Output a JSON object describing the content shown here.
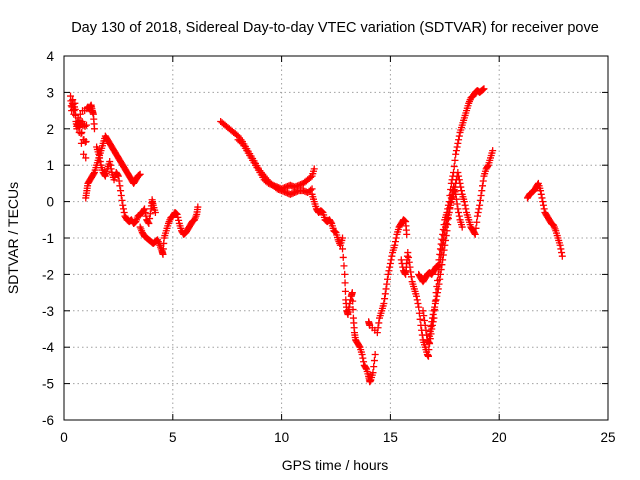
{
  "chart_data": {
    "type": "scatter",
    "title": "Day 130 of 2018, Sidereal Day-to-day VTEC variation (SDTVAR) for receiver pove",
    "xlabel": "GPS time / hours",
    "ylabel": "SDTVAR / TECUs",
    "xlim": [
      0,
      25
    ],
    "ylim": [
      -6,
      4
    ],
    "xticks": [
      "0",
      "5",
      "10",
      "15",
      "20",
      "25"
    ],
    "yticks": [
      "-6",
      "-5",
      "-4",
      "-3",
      "-2",
      "-1",
      "0",
      "1",
      "2",
      "3",
      "4"
    ],
    "grid": true,
    "marker": "+",
    "series_color": "#ff0000",
    "series": [
      {
        "points": [
          [
            0.3,
            2.9
          ],
          [
            0.35,
            2.5
          ],
          [
            0.4,
            2.8
          ],
          [
            0.45,
            2.4
          ],
          [
            0.5,
            2.7
          ],
          [
            0.55,
            2.2
          ],
          [
            0.6,
            2.0
          ],
          [
            0.65,
            2.3
          ],
          [
            0.7,
            1.9
          ],
          [
            0.75,
            2.4
          ],
          [
            0.8,
            1.6
          ],
          [
            0.85,
            2.5
          ],
          [
            0.9,
            1.3
          ],
          [
            0.95,
            2.5
          ],
          [
            1.0,
            1.2
          ],
          [
            1.05,
            2.55
          ],
          [
            1.1,
            2.6
          ],
          [
            1.15,
            2.55
          ],
          [
            1.2,
            2.6
          ],
          [
            1.25,
            2.65
          ],
          [
            1.3,
            2.5
          ],
          [
            1.35,
            2.4
          ],
          [
            1.4,
            2.0
          ]
        ]
      },
      {
        "points": [
          [
            1.0,
            0.1
          ],
          [
            1.05,
            0.3
          ],
          [
            1.1,
            0.5
          ],
          [
            1.2,
            0.6
          ],
          [
            1.3,
            0.7
          ],
          [
            1.4,
            0.8
          ],
          [
            1.5,
            1.0
          ],
          [
            1.6,
            1.2
          ],
          [
            1.7,
            1.4
          ],
          [
            1.8,
            1.6
          ],
          [
            1.9,
            1.8
          ],
          [
            2.0,
            1.7
          ],
          [
            2.1,
            1.6
          ],
          [
            2.2,
            1.5
          ],
          [
            2.3,
            1.4
          ],
          [
            2.4,
            1.3
          ],
          [
            2.5,
            1.2
          ],
          [
            2.6,
            1.1
          ],
          [
            2.7,
            1.0
          ],
          [
            2.8,
            0.9
          ],
          [
            2.9,
            0.8
          ],
          [
            3.0,
            0.7
          ],
          [
            3.1,
            0.6
          ],
          [
            3.2,
            0.5
          ],
          [
            3.3,
            0.6
          ],
          [
            3.4,
            0.7
          ],
          [
            3.5,
            0.75
          ]
        ]
      },
      {
        "points": [
          [
            1.5,
            1.5
          ],
          [
            1.6,
            1.3
          ],
          [
            1.7,
            1.0
          ],
          [
            1.8,
            0.8
          ],
          [
            1.9,
            0.7
          ],
          [
            2.0,
            0.9
          ],
          [
            2.1,
            1.1
          ],
          [
            2.2,
            0.8
          ],
          [
            2.3,
            0.6
          ],
          [
            2.4,
            0.8
          ],
          [
            2.5,
            0.7
          ],
          [
            2.6,
            0.3
          ],
          [
            2.7,
            -0.1
          ],
          [
            2.8,
            -0.4
          ],
          [
            2.9,
            -0.5
          ],
          [
            3.0,
            -0.55
          ],
          [
            3.1,
            -0.5
          ],
          [
            3.2,
            -0.6
          ],
          [
            3.3,
            -0.55
          ],
          [
            3.4,
            -0.4
          ],
          [
            3.5,
            -0.35
          ],
          [
            3.6,
            -0.3
          ],
          [
            3.7,
            -0.2
          ],
          [
            3.8,
            -0.5
          ],
          [
            3.9,
            -0.6
          ],
          [
            4.0,
            -0.2
          ],
          [
            4.05,
            0.05
          ],
          [
            4.1,
            -0.1
          ],
          [
            4.2,
            -0.3
          ]
        ]
      },
      {
        "points": [
          [
            3.5,
            -0.7
          ],
          [
            3.6,
            -0.85
          ],
          [
            3.7,
            -0.95
          ],
          [
            3.8,
            -1.0
          ],
          [
            3.9,
            -1.05
          ],
          [
            4.0,
            -1.1
          ],
          [
            4.1,
            -1.15
          ],
          [
            4.2,
            -1.1
          ],
          [
            4.3,
            -1.05
          ],
          [
            4.4,
            -1.2
          ],
          [
            4.5,
            -1.35
          ],
          [
            4.55,
            -1.45
          ],
          [
            4.6,
            -1.0
          ],
          [
            4.7,
            -0.8
          ],
          [
            4.8,
            -0.6
          ],
          [
            4.9,
            -0.45
          ],
          [
            5.0,
            -0.4
          ],
          [
            5.1,
            -0.3
          ],
          [
            5.2,
            -0.35
          ],
          [
            5.3,
            -0.6
          ],
          [
            5.4,
            -0.8
          ],
          [
            5.5,
            -0.9
          ],
          [
            5.6,
            -0.85
          ],
          [
            5.7,
            -0.75
          ],
          [
            5.8,
            -0.65
          ],
          [
            5.9,
            -0.55
          ],
          [
            6.0,
            -0.5
          ],
          [
            6.1,
            -0.35
          ],
          [
            6.15,
            -0.15
          ]
        ]
      },
      {
        "points": [
          [
            7.2,
            2.2
          ],
          [
            7.4,
            2.1
          ],
          [
            7.6,
            2.0
          ],
          [
            7.8,
            1.9
          ],
          [
            8.0,
            1.8
          ],
          [
            8.2,
            1.65
          ],
          [
            8.4,
            1.45
          ],
          [
            8.6,
            1.25
          ],
          [
            8.8,
            1.05
          ],
          [
            9.0,
            0.85
          ],
          [
            9.2,
            0.7
          ],
          [
            9.4,
            0.55
          ],
          [
            9.6,
            0.45
          ],
          [
            9.8,
            0.35
          ],
          [
            10.0,
            0.3
          ],
          [
            10.2,
            0.25
          ],
          [
            10.4,
            0.2
          ],
          [
            10.6,
            0.25
          ],
          [
            10.8,
            0.3
          ],
          [
            11.0,
            0.3
          ],
          [
            11.2,
            0.25
          ],
          [
            11.4,
            0.35
          ]
        ]
      },
      {
        "points": [
          [
            8.0,
            1.7
          ],
          [
            8.2,
            1.6
          ],
          [
            8.4,
            1.4
          ],
          [
            8.6,
            1.2
          ],
          [
            8.8,
            1.0
          ],
          [
            9.0,
            0.8
          ],
          [
            9.2,
            0.6
          ],
          [
            9.4,
            0.5
          ],
          [
            9.6,
            0.45
          ],
          [
            9.8,
            0.4
          ],
          [
            10.0,
            0.35
          ],
          [
            10.2,
            0.4
          ],
          [
            10.4,
            0.45
          ],
          [
            10.6,
            0.4
          ],
          [
            10.8,
            0.45
          ],
          [
            11.0,
            0.5
          ],
          [
            11.2,
            0.6
          ],
          [
            11.4,
            0.7
          ],
          [
            11.5,
            0.9
          ]
        ]
      },
      {
        "points": [
          [
            11.4,
            0.2
          ],
          [
            11.5,
            0.0
          ],
          [
            11.6,
            -0.2
          ],
          [
            11.7,
            -0.3
          ],
          [
            11.8,
            -0.25
          ],
          [
            11.9,
            -0.3
          ],
          [
            12.0,
            -0.5
          ],
          [
            12.1,
            -0.55
          ],
          [
            12.2,
            -0.5
          ],
          [
            12.3,
            -0.6
          ],
          [
            12.4,
            -0.8
          ],
          [
            12.5,
            -0.85
          ],
          [
            12.6,
            -1.05
          ],
          [
            12.7,
            -1.2
          ],
          [
            12.8,
            -1.0
          ]
        ]
      },
      {
        "points": [
          [
            12.8,
            -1.3
          ],
          [
            12.9,
            -2.0
          ],
          [
            12.95,
            -2.7
          ],
          [
            13.0,
            -3.0
          ],
          [
            13.05,
            -3.1
          ],
          [
            13.1,
            -2.9
          ],
          [
            13.2,
            -2.6
          ],
          [
            13.25,
            -2.5
          ],
          [
            13.3,
            -3.2
          ],
          [
            13.35,
            -3.6
          ],
          [
            13.4,
            -3.8
          ],
          [
            13.5,
            -3.9
          ],
          [
            13.6,
            -4.0
          ],
          [
            13.7,
            -4.2
          ],
          [
            13.8,
            -4.5
          ],
          [
            13.9,
            -4.6
          ],
          [
            14.0,
            -4.8
          ],
          [
            14.05,
            -4.95
          ],
          [
            14.1,
            -4.9
          ],
          [
            14.2,
            -4.7
          ],
          [
            14.3,
            -4.2
          ]
        ]
      },
      {
        "points": [
          [
            14.0,
            -3.3
          ],
          [
            14.05,
            -3.4
          ],
          [
            14.4,
            -3.6
          ],
          [
            14.5,
            -3.2
          ],
          [
            14.6,
            -3.0
          ],
          [
            14.7,
            -2.8
          ],
          [
            14.8,
            -2.4
          ],
          [
            14.9,
            -2.0
          ],
          [
            15.0,
            -1.7
          ],
          [
            15.1,
            -1.4
          ],
          [
            15.2,
            -1.2
          ],
          [
            15.3,
            -0.9
          ],
          [
            15.4,
            -0.7
          ],
          [
            15.5,
            -0.6
          ],
          [
            15.6,
            -0.5
          ],
          [
            15.7,
            -0.55
          ],
          [
            15.75,
            -0.9
          ]
        ]
      },
      {
        "points": [
          [
            15.5,
            -1.6
          ],
          [
            15.6,
            -1.9
          ],
          [
            15.7,
            -2.0
          ],
          [
            15.75,
            -1.7
          ],
          [
            15.8,
            -1.4
          ],
          [
            15.9,
            -1.8
          ],
          [
            16.0,
            -2.2
          ],
          [
            16.1,
            -2.4
          ],
          [
            16.2,
            -2.6
          ],
          [
            16.3,
            -2.9
          ],
          [
            16.4,
            -3.4
          ],
          [
            16.5,
            -3.8
          ],
          [
            16.6,
            -4.0
          ],
          [
            16.7,
            -4.2
          ],
          [
            16.75,
            -4.25
          ],
          [
            16.8,
            -3.7
          ],
          [
            16.9,
            -3.3
          ],
          [
            17.0,
            -3.0
          ],
          [
            17.1,
            -2.7
          ],
          [
            17.2,
            -2.4
          ],
          [
            17.3,
            -2.0
          ],
          [
            17.4,
            -1.6
          ],
          [
            17.5,
            -1.2
          ],
          [
            17.6,
            -0.8
          ],
          [
            17.7,
            -0.3
          ],
          [
            17.8,
            0.1
          ],
          [
            17.9,
            0.4
          ],
          [
            18.0,
            0.2
          ],
          [
            18.1,
            -0.2
          ],
          [
            18.2,
            -0.5
          ],
          [
            18.3,
            -0.7
          ]
        ]
      },
      {
        "points": [
          [
            16.3,
            -2.0
          ],
          [
            16.4,
            -2.1
          ],
          [
            16.5,
            -2.2
          ],
          [
            16.6,
            -2.1
          ],
          [
            16.7,
            -2.0
          ],
          [
            16.8,
            -1.95
          ],
          [
            16.9,
            -2.0
          ],
          [
            17.0,
            -1.9
          ],
          [
            17.1,
            -1.8
          ],
          [
            17.2,
            -1.75
          ],
          [
            17.3,
            -1.3
          ],
          [
            17.4,
            -0.9
          ],
          [
            17.5,
            -0.5
          ],
          [
            17.6,
            -0.3
          ],
          [
            17.7,
            0.0
          ],
          [
            17.8,
            0.5
          ],
          [
            17.9,
            0.8
          ],
          [
            18.0,
            1.3
          ],
          [
            18.1,
            1.6
          ],
          [
            18.2,
            1.9
          ],
          [
            18.3,
            2.1
          ],
          [
            18.4,
            2.3
          ],
          [
            18.5,
            2.5
          ],
          [
            18.6,
            2.7
          ],
          [
            18.7,
            2.85
          ],
          [
            18.8,
            2.9
          ],
          [
            18.9,
            3.0
          ],
          [
            19.0,
            3.05
          ],
          [
            19.1,
            3.0
          ],
          [
            19.2,
            3.05
          ],
          [
            19.3,
            3.1
          ]
        ]
      },
      {
        "points": [
          [
            16.5,
            -3.0
          ],
          [
            16.6,
            -3.4
          ],
          [
            16.7,
            -3.8
          ],
          [
            16.8,
            -3.9
          ],
          [
            16.9,
            -3.5
          ],
          [
            17.0,
            -3.2
          ],
          [
            17.1,
            -2.5
          ],
          [
            17.2,
            -2.0
          ],
          [
            17.3,
            -1.6
          ],
          [
            17.4,
            -1.2
          ],
          [
            17.5,
            -0.8
          ],
          [
            17.6,
            -0.5
          ],
          [
            17.7,
            -0.3
          ],
          [
            17.8,
            0.0
          ],
          [
            17.9,
            0.2
          ],
          [
            18.0,
            0.5
          ],
          [
            18.1,
            0.8
          ],
          [
            18.2,
            0.5
          ],
          [
            18.3,
            0.2
          ],
          [
            18.4,
            0.0
          ],
          [
            18.5,
            -0.3
          ],
          [
            18.6,
            -0.5
          ],
          [
            18.7,
            -0.7
          ],
          [
            18.8,
            -0.8
          ],
          [
            18.9,
            -0.9
          ],
          [
            19.0,
            -0.4
          ],
          [
            19.1,
            -0.1
          ],
          [
            19.2,
            0.3
          ],
          [
            19.3,
            0.7
          ],
          [
            19.4,
            0.9
          ],
          [
            19.5,
            1.0
          ],
          [
            19.6,
            1.2
          ],
          [
            19.7,
            1.4
          ]
        ]
      },
      {
        "points": [
          [
            21.3,
            0.1
          ],
          [
            21.4,
            0.2
          ],
          [
            21.5,
            0.25
          ],
          [
            21.6,
            0.3
          ],
          [
            21.7,
            0.4
          ],
          [
            21.8,
            0.5
          ],
          [
            21.9,
            0.3
          ],
          [
            22.0,
            0.0
          ],
          [
            22.1,
            -0.3
          ],
          [
            22.2,
            -0.4
          ],
          [
            22.3,
            -0.5
          ],
          [
            22.4,
            -0.6
          ],
          [
            22.5,
            -0.65
          ],
          [
            22.6,
            -0.8
          ],
          [
            22.7,
            -1.0
          ],
          [
            22.8,
            -1.2
          ],
          [
            22.9,
            -1.5
          ]
        ]
      }
    ]
  }
}
